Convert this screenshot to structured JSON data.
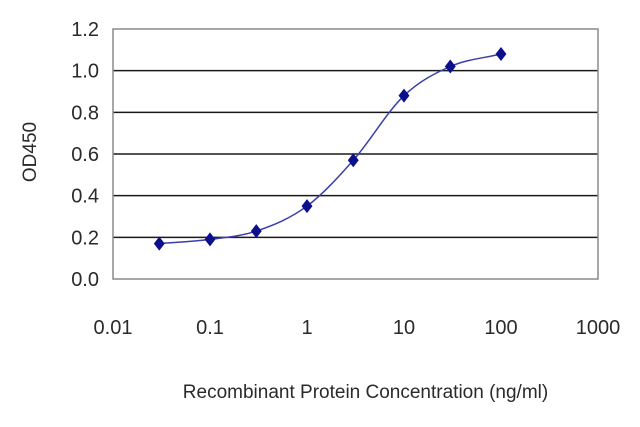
{
  "chart_data": {
    "type": "scatter",
    "title": "",
    "xlabel": "Recombinant Protein Concentration (ng/ml)",
    "ylabel": "OD450",
    "x_scale": "log",
    "xlim": [
      0.01,
      1000
    ],
    "ylim": [
      0.0,
      1.2
    ],
    "x_ticks": [
      {
        "value": 0.01,
        "label": "0.01"
      },
      {
        "value": 0.1,
        "label": "0.1"
      },
      {
        "value": 1,
        "label": "1"
      },
      {
        "value": 10,
        "label": "10"
      },
      {
        "value": 100,
        "label": "100"
      },
      {
        "value": 1000,
        "label": "1000"
      }
    ],
    "y_ticks": [
      {
        "value": 0.0,
        "label": "0.0"
      },
      {
        "value": 0.2,
        "label": "0.2"
      },
      {
        "value": 0.4,
        "label": "0.4"
      },
      {
        "value": 0.6,
        "label": "0.6"
      },
      {
        "value": 0.8,
        "label": "0.8"
      },
      {
        "value": 1.0,
        "label": "1.0"
      },
      {
        "value": 1.2,
        "label": "1.2"
      }
    ],
    "grid": "horizontal",
    "series": [
      {
        "x": [
          0.03,
          0.1,
          0.3,
          1,
          3,
          10,
          30,
          100
        ],
        "y": [
          0.17,
          0.19,
          0.23,
          0.35,
          0.57,
          0.88,
          1.02,
          1.08
        ],
        "marker": "diamond",
        "fit": "sigmoid"
      }
    ],
    "colors": {
      "marker": "#0b0f8c",
      "curve": "#3a3fa8",
      "grid": "#1a1a1a",
      "frame": "#8a8a8a"
    }
  }
}
